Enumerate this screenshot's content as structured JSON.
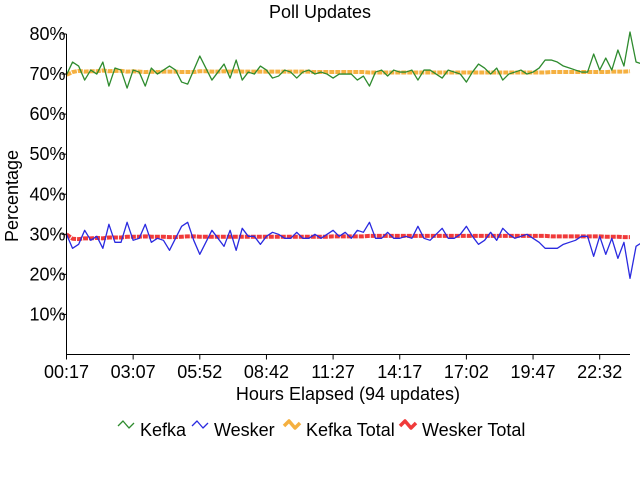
{
  "chart_data": {
    "type": "line",
    "title": "Poll Updates",
    "xlabel": "Hours Elapsed (94 updates)",
    "ylabel": "Percentage",
    "ylim": [
      0,
      80
    ],
    "y_ticks": [
      {
        "value": 10,
        "label": "10%"
      },
      {
        "value": 20,
        "label": "20%"
      },
      {
        "value": 30,
        "label": "30%"
      },
      {
        "value": 40,
        "label": "40%"
      },
      {
        "value": 50,
        "label": "50%"
      },
      {
        "value": 60,
        "label": "60%"
      },
      {
        "value": 70,
        "label": "70%"
      },
      {
        "value": 80,
        "label": "80%"
      }
    ],
    "x_ticks": [
      {
        "index": 0,
        "label": "00:17"
      },
      {
        "index": 11,
        "label": "03:07"
      },
      {
        "index": 22,
        "label": "05:52"
      },
      {
        "index": 33,
        "label": "08:42"
      },
      {
        "index": 44,
        "label": "11:27"
      },
      {
        "index": 55,
        "label": "14:17"
      },
      {
        "index": 66,
        "label": "17:02"
      },
      {
        "index": 77,
        "label": "19:47"
      },
      {
        "index": 88,
        "label": "22:32"
      }
    ],
    "n_points": 94,
    "grid": false,
    "legend_position": "bottom",
    "series": [
      {
        "name": "Kefka",
        "color": "#2e8b2e",
        "style": "thin",
        "values": [
          69.8,
          73.0,
          72.0,
          68.5,
          71.0,
          70.0,
          73.0,
          67.0,
          71.5,
          71.0,
          66.5,
          71.0,
          70.5,
          67.0,
          71.5,
          70.0,
          71.0,
          72.0,
          71.0,
          68.0,
          67.5,
          71.0,
          74.5,
          71.5,
          68.5,
          70.5,
          72.5,
          69.0,
          73.5,
          68.5,
          70.5,
          70.0,
          72.0,
          71.0,
          69.0,
          69.5,
          71.0,
          70.5,
          69.0,
          70.5,
          71.0,
          70.0,
          70.5,
          70.0,
          69.0,
          70.0,
          70.0,
          70.0,
          68.5,
          69.5,
          67.0,
          70.5,
          71.0,
          69.5,
          71.0,
          70.5,
          70.5,
          71.0,
          68.5,
          71.0,
          71.0,
          70.0,
          69.0,
          71.0,
          70.5,
          70.0,
          68.0,
          70.5,
          72.5,
          71.5,
          70.0,
          71.5,
          68.5,
          70.0,
          70.5,
          71.0,
          70.0,
          70.5,
          71.5,
          73.5,
          73.5,
          73.0,
          72.0,
          71.5,
          71.0,
          70.5,
          70.5,
          75.0,
          71.0,
          74.0,
          71.0,
          76.0,
          72.0,
          80.5,
          73.0,
          72.5
        ]
      },
      {
        "name": "Wesker",
        "color": "#2a2ae0",
        "style": "thin",
        "values": [
          30.0,
          26.5,
          27.5,
          31.0,
          28.5,
          29.5,
          26.5,
          32.5,
          28.0,
          28.0,
          33.0,
          28.5,
          29.0,
          32.5,
          28.0,
          29.0,
          28.5,
          26.0,
          29.0,
          32.0,
          33.0,
          28.5,
          25.0,
          28.0,
          31.0,
          29.0,
          27.0,
          31.0,
          26.0,
          31.5,
          29.5,
          29.5,
          27.5,
          29.5,
          30.5,
          30.0,
          29.0,
          29.0,
          30.5,
          29.0,
          29.0,
          30.0,
          29.0,
          30.0,
          31.0,
          29.5,
          30.5,
          29.0,
          31.0,
          30.5,
          33.0,
          29.0,
          29.0,
          30.5,
          29.0,
          29.0,
          29.5,
          29.0,
          32.0,
          29.0,
          28.5,
          30.0,
          31.5,
          29.0,
          29.0,
          30.0,
          32.0,
          29.5,
          27.5,
          28.5,
          30.5,
          28.5,
          31.5,
          30.0,
          29.0,
          29.5,
          30.0,
          29.0,
          28.0,
          26.5,
          26.5,
          26.5,
          27.5,
          28.0,
          28.5,
          29.5,
          29.5,
          24.5,
          29.5,
          25.0,
          29.0,
          24.0,
          28.0,
          19.0,
          27.0,
          28.0
        ]
      },
      {
        "name": "Kefka Total",
        "color": "#f5b040",
        "style": "thick",
        "values": [
          69.8,
          70.5,
          70.8,
          70.6,
          70.7,
          70.7,
          70.9,
          70.7,
          70.8,
          70.8,
          70.6,
          70.7,
          70.6,
          70.5,
          70.6,
          70.5,
          70.6,
          70.6,
          70.6,
          70.5,
          70.5,
          70.5,
          70.7,
          70.7,
          70.6,
          70.6,
          70.7,
          70.6,
          70.7,
          70.6,
          70.6,
          70.6,
          70.6,
          70.6,
          70.6,
          70.6,
          70.6,
          70.6,
          70.6,
          70.6,
          70.6,
          70.5,
          70.5,
          70.5,
          70.5,
          70.5,
          70.5,
          70.5,
          70.5,
          70.5,
          70.4,
          70.4,
          70.4,
          70.4,
          70.4,
          70.4,
          70.4,
          70.4,
          70.4,
          70.4,
          70.4,
          70.4,
          70.4,
          70.4,
          70.4,
          70.4,
          70.4,
          70.4,
          70.4,
          70.4,
          70.4,
          70.4,
          70.4,
          70.4,
          70.4,
          70.4,
          70.4,
          70.4,
          70.4,
          70.4,
          70.5,
          70.5,
          70.5,
          70.5,
          70.5,
          70.5,
          70.5,
          70.5,
          70.5,
          70.5,
          70.6,
          70.6,
          70.6,
          70.7
        ]
      },
      {
        "name": "Wesker Total",
        "color": "#f03a3a",
        "style": "thick",
        "values": [
          30.0,
          28.9,
          28.8,
          29.0,
          29.0,
          29.1,
          29.0,
          29.2,
          29.2,
          29.2,
          29.4,
          29.4,
          29.4,
          29.5,
          29.4,
          29.4,
          29.4,
          29.3,
          29.3,
          29.4,
          29.5,
          29.5,
          29.4,
          29.4,
          29.4,
          29.4,
          29.4,
          29.4,
          29.4,
          29.4,
          29.4,
          29.4,
          29.4,
          29.4,
          29.4,
          29.4,
          29.4,
          29.4,
          29.4,
          29.4,
          29.4,
          29.4,
          29.4,
          29.4,
          29.5,
          29.5,
          29.5,
          29.5,
          29.5,
          29.5,
          29.6,
          29.6,
          29.6,
          29.6,
          29.6,
          29.6,
          29.6,
          29.6,
          29.6,
          29.6,
          29.6,
          29.6,
          29.6,
          29.6,
          29.6,
          29.6,
          29.6,
          29.6,
          29.6,
          29.6,
          29.6,
          29.6,
          29.6,
          29.6,
          29.6,
          29.6,
          29.6,
          29.6,
          29.6,
          29.6,
          29.5,
          29.5,
          29.5,
          29.5,
          29.5,
          29.5,
          29.5,
          29.5,
          29.5,
          29.4,
          29.4,
          29.4,
          29.3,
          29.3
        ]
      }
    ]
  }
}
